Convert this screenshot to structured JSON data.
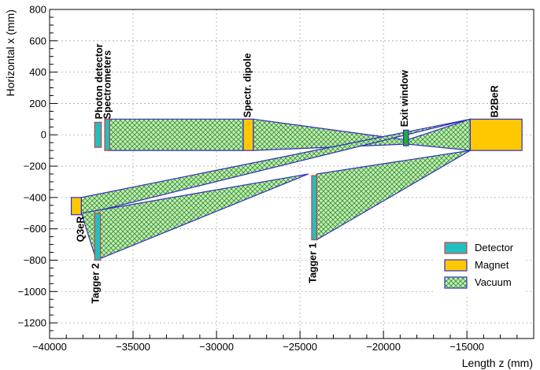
{
  "chart_data": {
    "type": "diagram",
    "xlabel": "Length z (mm)",
    "ylabel": "Horizontal x (mm)",
    "xlim": [
      -40000,
      -11000
    ],
    "ylim": [
      -1300,
      800
    ],
    "xticks": [
      -40000,
      -35000,
      -30000,
      -25000,
      -20000,
      -15000
    ],
    "xtick_labels": [
      "−40000",
      "−35000",
      "−30000",
      "−25000",
      "−20000",
      "−15000"
    ],
    "yticks": [
      -1200,
      -1000,
      -800,
      -600,
      -400,
      -200,
      0,
      200,
      400,
      600,
      800
    ],
    "ytick_labels": [
      "−1200",
      "−1000",
      "−800",
      "−600",
      "−400",
      "−200",
      "0",
      "200",
      "400",
      "600",
      "800"
    ],
    "grid": true,
    "legend": {
      "position": "bottom-right",
      "entries": [
        {
          "label": "Detector",
          "fill": "#20c0c0",
          "stroke": "#d04040"
        },
        {
          "label": "Magnet",
          "fill": "#ffc800",
          "stroke": "#3030c0"
        },
        {
          "label": "Vacuum",
          "fill": "#c8f0a0",
          "stroke": "#3030c0",
          "pattern": "hatch"
        }
      ]
    },
    "vacuum_regions": [
      {
        "points": [
          [
            -36500,
            100
          ],
          [
            -28400,
            100
          ],
          [
            -28400,
            -100
          ],
          [
            -36500,
            -100
          ]
        ]
      },
      {
        "points": [
          [
            -27800,
            100
          ],
          [
            -18800,
            -30
          ],
          [
            -18800,
            -60
          ],
          [
            -27800,
            -100
          ]
        ]
      },
      {
        "points": [
          [
            -18500,
            -30
          ],
          [
            -14800,
            100
          ],
          [
            -14800,
            -100
          ],
          [
            -18500,
            -60
          ]
        ]
      },
      {
        "points": [
          [
            -14800,
            -100
          ],
          [
            -24000,
            -250
          ],
          [
            -24000,
            -670
          ]
        ]
      },
      {
        "points": [
          [
            -14800,
            100
          ],
          [
            -38100,
            -400
          ],
          [
            -38100,
            -510
          ]
        ]
      },
      {
        "points": [
          [
            -24500,
            -250
          ],
          [
            -38100,
            -500
          ],
          [
            -37200,
            -800
          ]
        ]
      }
    ],
    "elements": [
      {
        "name": "Photon detector",
        "kind": "detector",
        "z": [
          -37300,
          -36900
        ],
        "x": [
          -80,
          80
        ],
        "label_z": -37000,
        "label_x": 100,
        "label_side": "top"
      },
      {
        "name": "Spectrometers",
        "kind": "detector",
        "z": [
          -36700,
          -36400
        ],
        "x": [
          -100,
          100
        ],
        "label_z": -36500,
        "label_x": 100,
        "label_side": "top"
      },
      {
        "name": "Spectr. dipole",
        "kind": "magnet",
        "z": [
          -28400,
          -27800
        ],
        "x": [
          -100,
          100
        ],
        "label_z": -28100,
        "label_x": 110,
        "label_side": "top"
      },
      {
        "name": "Exit window",
        "kind": "window",
        "z": [
          -18800,
          -18500
        ],
        "x": [
          -70,
          30
        ],
        "label_z": -18700,
        "label_x": 50,
        "label_side": "top"
      },
      {
        "name": "B2BeR",
        "kind": "magnet",
        "z": [
          -14800,
          -11700
        ],
        "x": [
          -100,
          100
        ],
        "label_z": -13300,
        "label_x": 110,
        "label_side": "top"
      },
      {
        "name": "Q3eR",
        "kind": "magnet",
        "z": [
          -38700,
          -38100
        ],
        "x": [
          -510,
          -400
        ],
        "label_z": -38100,
        "label_x": -520,
        "label_side": "bottom"
      },
      {
        "name": "Tagger 2",
        "kind": "detector",
        "z": [
          -37300,
          -36950
        ],
        "x": [
          -800,
          -500
        ],
        "label_z": -37200,
        "label_x": -820,
        "label_side": "bottom"
      },
      {
        "name": "Tagger 1",
        "kind": "detector",
        "z": [
          -24300,
          -24000
        ],
        "x": [
          -670,
          -260
        ],
        "label_z": -24200,
        "label_x": -690,
        "label_side": "bottom"
      }
    ]
  }
}
